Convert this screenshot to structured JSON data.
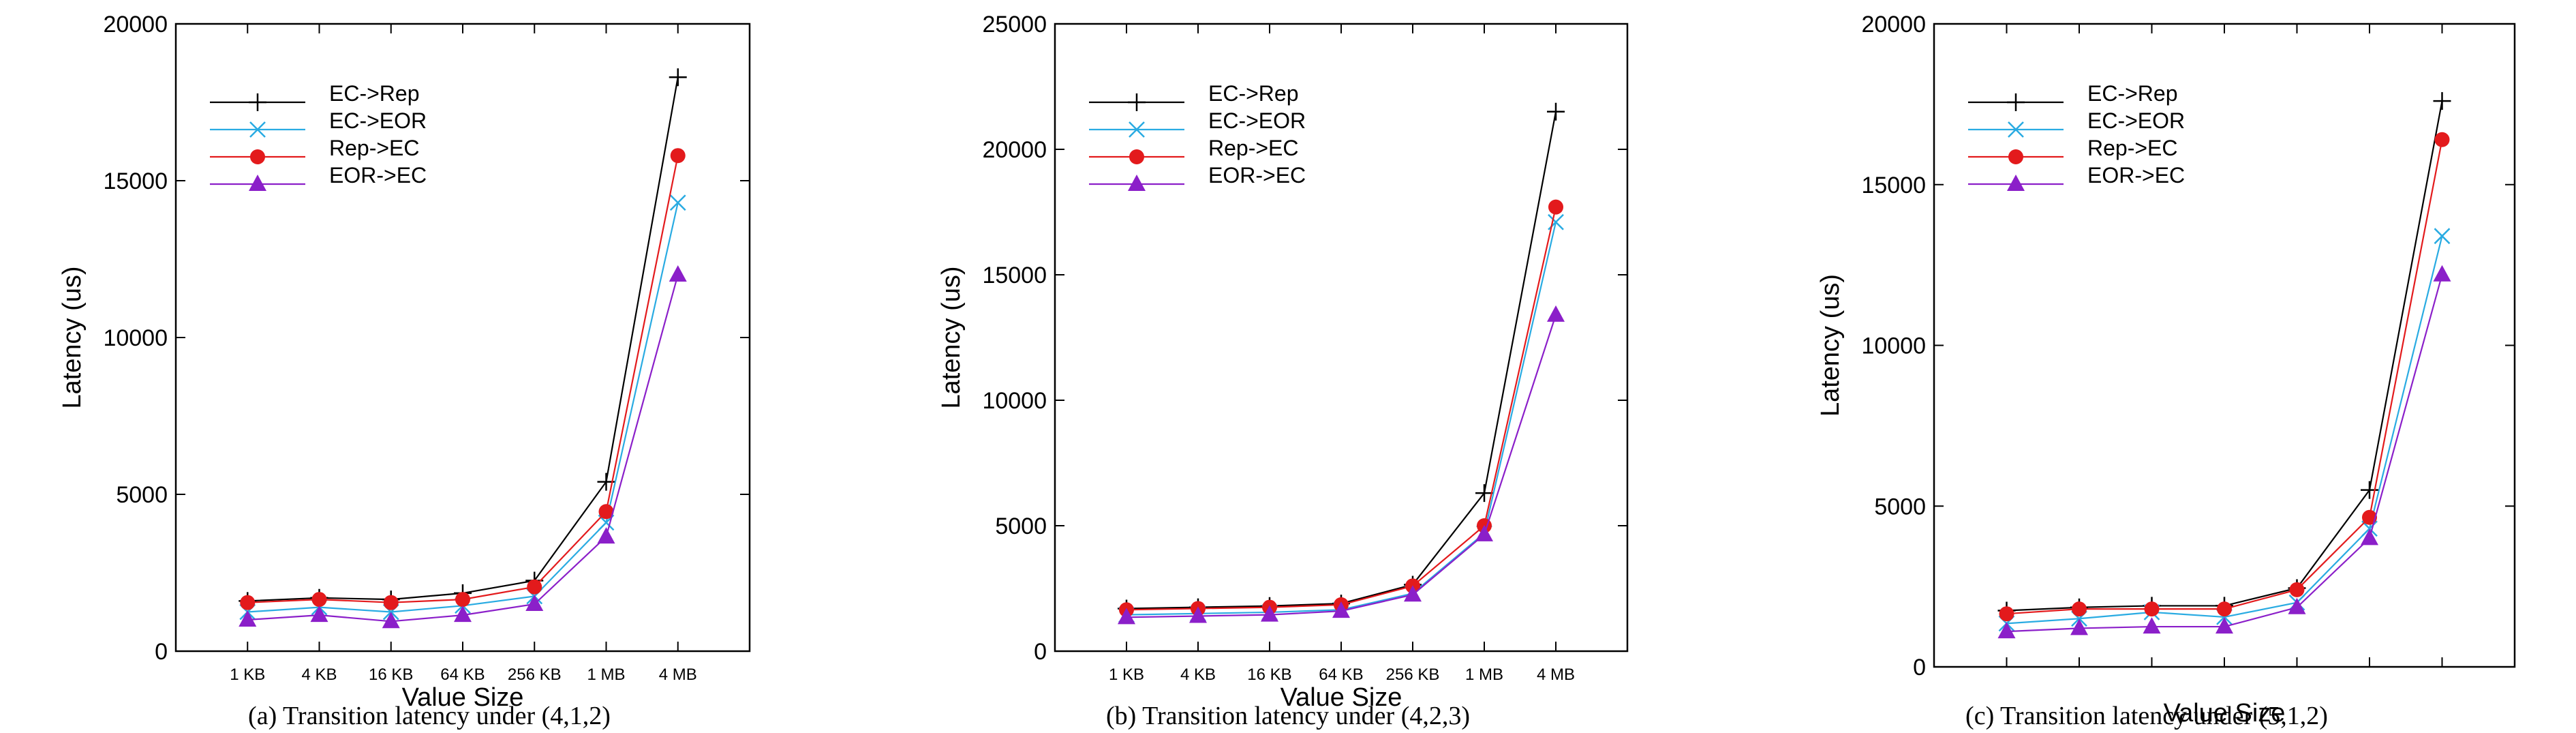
{
  "chart_data": [
    {
      "type": "line",
      "caption": "(a) Transition latency under (4,1,2)",
      "xlabel": "Value Size",
      "ylabel": "Latency (us)",
      "categories": [
        "1 KB",
        "4 KB",
        "16 KB",
        "64 KB",
        "256 KB",
        "1 MB",
        "4 MB"
      ],
      "ylim": [
        0,
        20000
      ],
      "yticks": [
        "0",
        "5000",
        "10000",
        "15000",
        "20000"
      ],
      "legend_position": "top-left",
      "grid": false,
      "series": [
        {
          "name": "EC->Rep",
          "color": "#000000",
          "marker": "plus",
          "values": [
            1600,
            1700,
            1650,
            1850,
            2250,
            5400,
            18300
          ]
        },
        {
          "name": "EC->EOR",
          "color": "#29abe2",
          "marker": "cross",
          "values": [
            1250,
            1400,
            1250,
            1450,
            1750,
            4100,
            14300
          ]
        },
        {
          "name": "Rep->EC",
          "color": "#e31a1c",
          "marker": "circle",
          "values": [
            1550,
            1650,
            1550,
            1650,
            2050,
            4450,
            15800
          ]
        },
        {
          "name": "EOR->EC",
          "color": "#8b1fc9",
          "marker": "triangle",
          "values": [
            1000,
            1150,
            950,
            1150,
            1500,
            3650,
            12000
          ]
        }
      ]
    },
    {
      "type": "line",
      "caption": "(b) Transition latency under (4,2,3)",
      "xlabel": "Value Size",
      "ylabel": "Latency (us)",
      "categories": [
        "1 KB",
        "4 KB",
        "16 KB",
        "64 KB",
        "256 KB",
        "1 MB",
        "4 MB"
      ],
      "ylim": [
        0,
        25000
      ],
      "yticks": [
        "0",
        "5000",
        "10000",
        "15000",
        "20000",
        "25000"
      ],
      "legend_position": "top-left",
      "grid": false,
      "series": [
        {
          "name": "EC->Rep",
          "color": "#000000",
          "marker": "plus",
          "values": [
            1700,
            1750,
            1800,
            1900,
            2650,
            6300,
            21500
          ]
        },
        {
          "name": "EC->EOR",
          "color": "#29abe2",
          "marker": "cross",
          "values": [
            1450,
            1500,
            1550,
            1650,
            2300,
            4700,
            17100
          ]
        },
        {
          "name": "Rep->EC",
          "color": "#e31a1c",
          "marker": "circle",
          "values": [
            1650,
            1700,
            1750,
            1850,
            2600,
            5000,
            17700
          ]
        },
        {
          "name": "EOR->EC",
          "color": "#8b1fc9",
          "marker": "triangle",
          "values": [
            1350,
            1400,
            1450,
            1600,
            2250,
            4650,
            13400
          ]
        }
      ]
    },
    {
      "type": "line",
      "caption": "(c) Transition latency under (5,1,2)",
      "xlabel": "Value Size",
      "ylabel": "Latency (us)",
      "categories": [
        "",
        "",
        "",
        "",
        "",
        "",
        ""
      ],
      "ylim": [
        0,
        20000
      ],
      "yticks": [
        "0",
        "5000",
        "10000",
        "15000",
        "20000"
      ],
      "legend_position": "top-left",
      "grid": false,
      "series": [
        {
          "name": "EC->Rep",
          "color": "#000000",
          "marker": "plus",
          "values": [
            1750,
            1850,
            1900,
            1900,
            2450,
            5500,
            17600
          ]
        },
        {
          "name": "EC->EOR",
          "color": "#29abe2",
          "marker": "cross",
          "values": [
            1350,
            1500,
            1700,
            1550,
            2000,
            4300,
            13400
          ]
        },
        {
          "name": "Rep->EC",
          "color": "#e31a1c",
          "marker": "circle",
          "values": [
            1650,
            1800,
            1800,
            1800,
            2400,
            4650,
            16400
          ]
        },
        {
          "name": "EOR->EC",
          "color": "#8b1fc9",
          "marker": "triangle",
          "values": [
            1100,
            1200,
            1250,
            1250,
            1850,
            4000,
            12200
          ]
        }
      ]
    }
  ]
}
